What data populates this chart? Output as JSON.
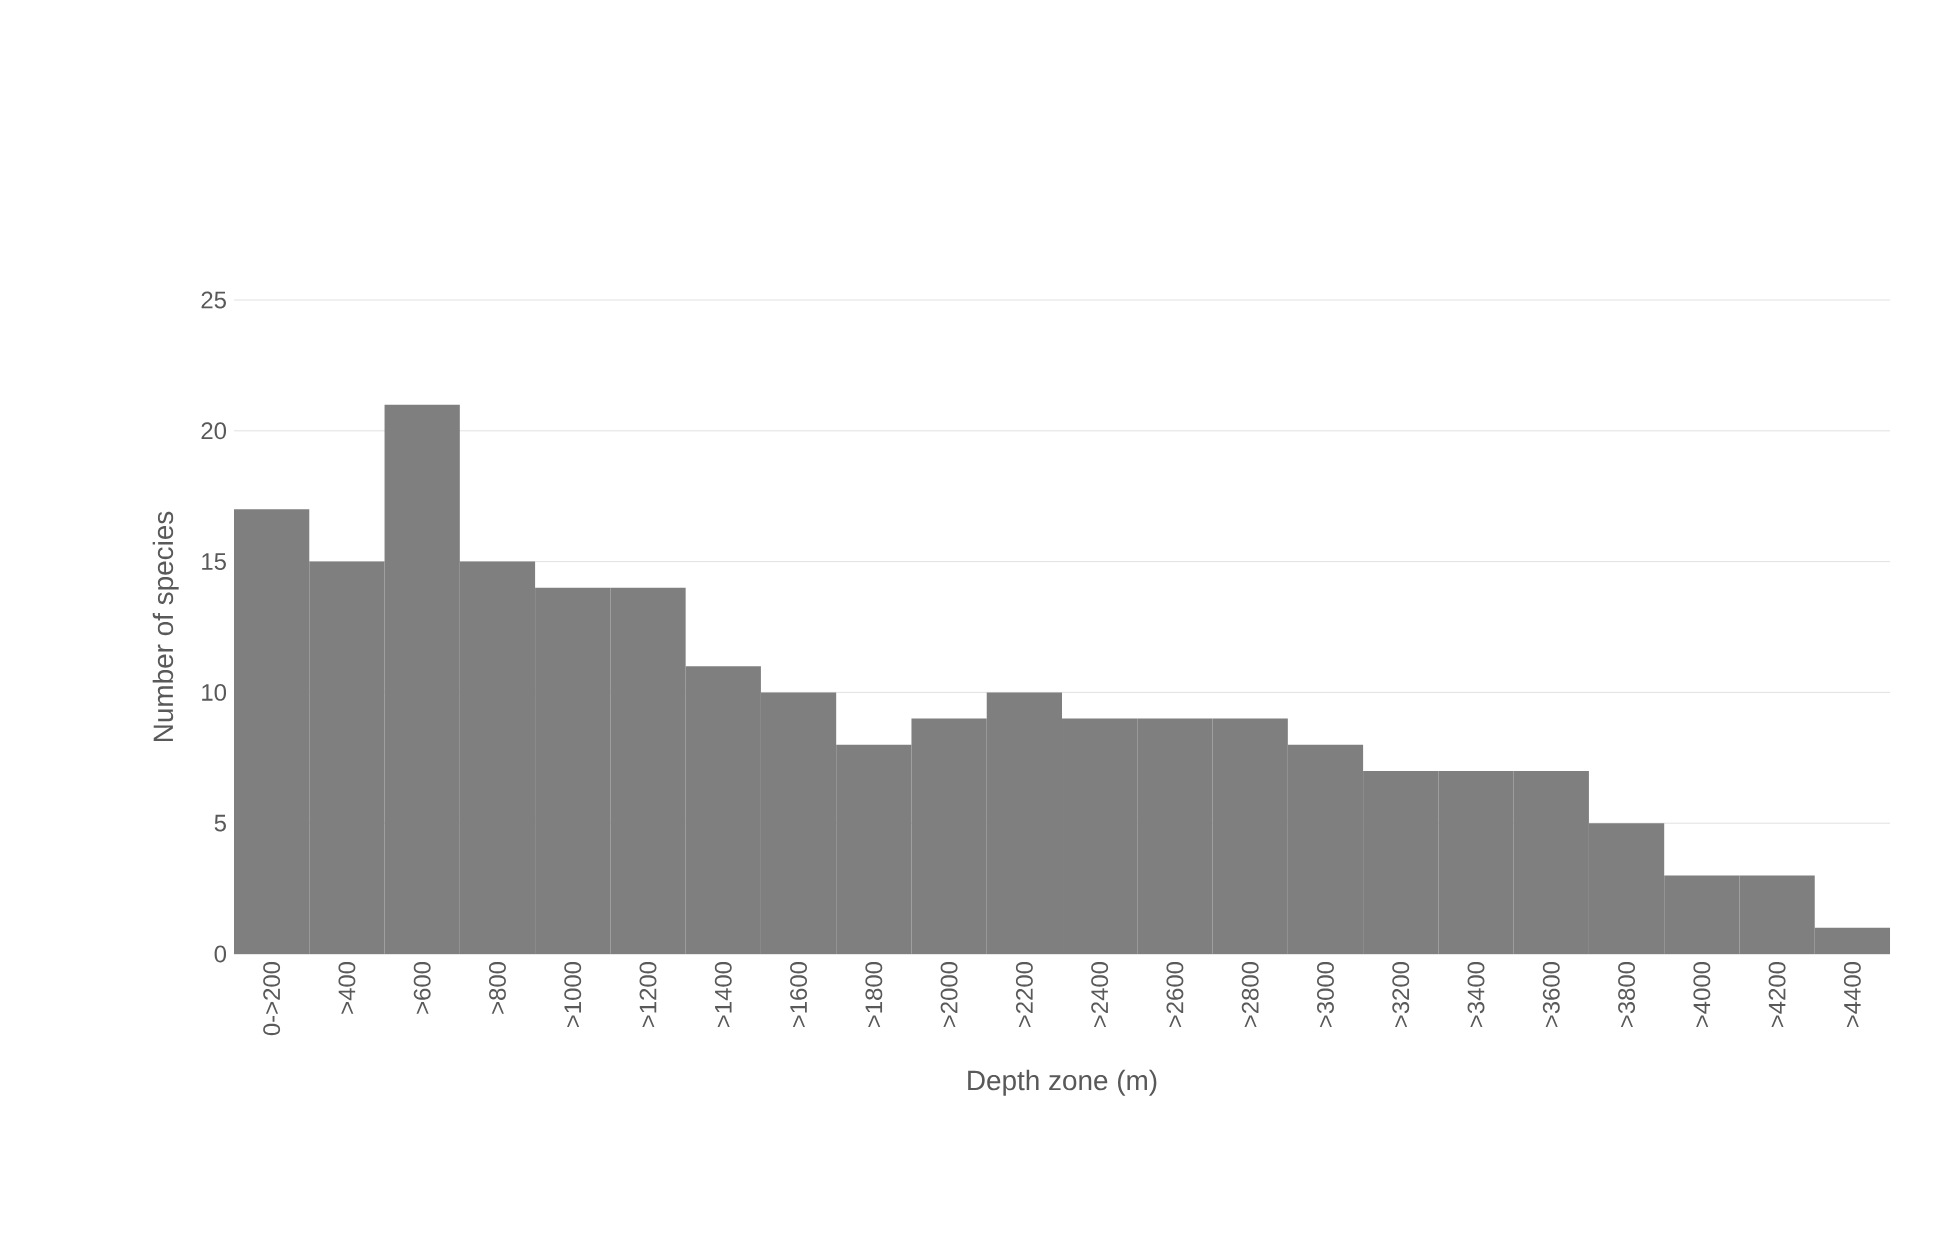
{
  "chart_data": {
    "type": "bar",
    "xlabel": "Depth zone (m)",
    "ylabel": "Number of species",
    "categories": [
      "0->200",
      ">400",
      ">600",
      ">800",
      ">1000",
      ">1200",
      ">1400",
      ">1600",
      ">1800",
      ">2000",
      ">2200",
      ">2400",
      ">2600",
      ">2800",
      ">3000",
      ">3200",
      ">3400",
      ">3600",
      ">3800",
      ">4000",
      ">4200",
      ">4400"
    ],
    "values": [
      17,
      15,
      21,
      15,
      14,
      14,
      11,
      10,
      8,
      9,
      10,
      9,
      9,
      9,
      8,
      7,
      7,
      7,
      5,
      3,
      3,
      1
    ],
    "color": "#7f7f7f",
    "ylim": [
      0,
      25
    ],
    "yticks": [
      0,
      5,
      10,
      15,
      20,
      25
    ],
    "grid": "y"
  }
}
